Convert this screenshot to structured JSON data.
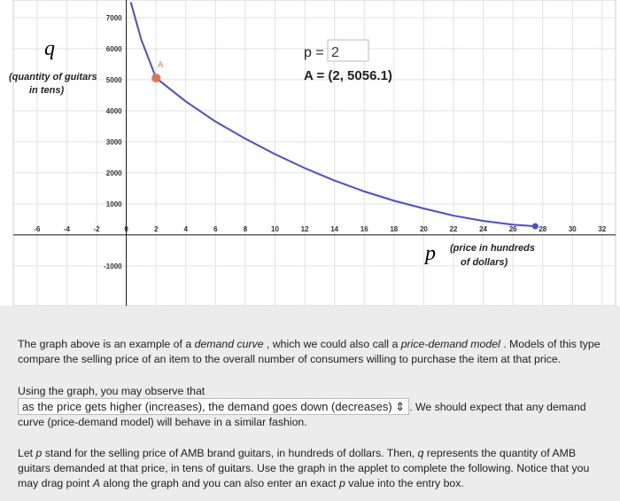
{
  "chart_data": {
    "type": "line",
    "x": [
      0.3,
      1,
      2,
      4,
      6,
      8,
      10,
      12,
      14,
      16,
      18,
      20,
      22,
      24,
      26,
      27.5
    ],
    "series": [
      {
        "color": "#4c4cd6",
        "values": [
          7500,
          6300,
          5056.1,
          4300,
          3650,
          3100,
          2600,
          2150,
          1750,
          1400,
          1100,
          850,
          620,
          450,
          330,
          280
        ]
      }
    ],
    "xlim": [
      -7.6,
      32.9
    ],
    "ylim": [
      -2290,
      7570
    ],
    "xticks": [
      -6,
      -4,
      -2,
      0,
      2,
      4,
      6,
      8,
      10,
      12,
      14,
      16,
      18,
      20,
      22,
      24,
      26,
      28,
      30,
      32
    ],
    "yticks": [
      -1000,
      1000,
      2000,
      3000,
      4000,
      5000,
      6000,
      7000
    ],
    "grid": true,
    "y_axis_symbol": "q",
    "y_axis_label": [
      "(quantity of guitars",
      "in tens)"
    ],
    "x_axis_symbol": "p",
    "x_axis_label": [
      "(price in hundreds",
      "of dollars)"
    ],
    "point": {
      "label": "A",
      "x": 2,
      "y": 5056.1,
      "color": "#e8704f",
      "readout": "A = (2, 5056.1)"
    },
    "input_label": "p ="
  },
  "text": {
    "paragraph1": [
      {
        "text": "The graph above is an example of a "
      },
      {
        "text": "demand curve",
        "italic": true
      },
      {
        "text": " , which we could also call a "
      },
      {
        "text": "price-demand model",
        "italic": true
      },
      {
        "text": " . Models of this type compare the selling price of an item to the overall number of consumers willing to purchase the item at that price."
      }
    ],
    "paragraph2_intro": "Using the graph, you may observe that",
    "dropdown": "as the price gets higher (increases), the demand goes down (decreases)",
    "paragraph2_rest": ". We should expect that any demand curve (price-demand model) will behave in a similar fashion.",
    "paragraph3": [
      {
        "text": "Let "
      },
      {
        "text": "p",
        "italic": true
      },
      {
        "text": " stand for the selling price of AMB brand guitars, in hundreds of dollars. Then, "
      },
      {
        "text": "q",
        "italic": true
      },
      {
        "text": " represents the quantity of AMB guitars demanded at that price, in tens of guitars. Use the graph in the applet to complete the following. Notice that you may drag point "
      },
      {
        "text": "A",
        "italic": true
      },
      {
        "text": " along the graph and you can also enter an exact "
      },
      {
        "text": "p",
        "italic": true
      },
      {
        "text": " value into the entry box."
      }
    ]
  }
}
